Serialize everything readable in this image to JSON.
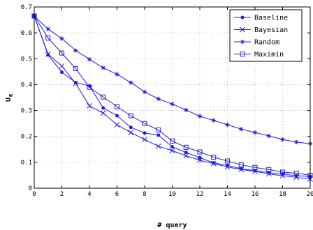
{
  "chart_data": {
    "type": "line",
    "xlabel": "# query",
    "ylabel_main": "U",
    "ylabel_sub": "R",
    "xlim": [
      0,
      20
    ],
    "ylim": [
      0,
      0.7
    ],
    "xticks": [
      "0",
      "2",
      "4",
      "6",
      "8",
      "10",
      "12",
      "14",
      "16",
      "18",
      "20"
    ],
    "yticks": [
      "0",
      "0.1",
      "0.2",
      "0.3",
      "0.4",
      "0.5",
      "0.6",
      "0.7"
    ],
    "grid": true,
    "legend_position": "top-right",
    "line_color": "#1f1fd6",
    "x": [
      0,
      1,
      2,
      3,
      4,
      5,
      6,
      7,
      8,
      9,
      10,
      11,
      12,
      13,
      14,
      15,
      16,
      17,
      18,
      19,
      20
    ],
    "series": [
      {
        "name": "Baseline",
        "marker": "dot",
        "values": [
          0.665,
          0.515,
          0.448,
          0.408,
          0.395,
          0.31,
          0.28,
          0.235,
          0.213,
          0.205,
          0.16,
          0.138,
          0.118,
          0.098,
          0.088,
          0.075,
          0.068,
          0.06,
          0.055,
          0.048,
          0.045
        ]
      },
      {
        "name": "Bayesian",
        "marker": "x",
        "values": [
          0.665,
          0.518,
          0.472,
          0.405,
          0.318,
          0.29,
          0.245,
          0.215,
          0.188,
          0.162,
          0.145,
          0.125,
          0.108,
          0.095,
          0.082,
          0.072,
          0.065,
          0.055,
          0.048,
          0.042,
          0.035
        ]
      },
      {
        "name": "Random",
        "marker": "star",
        "values": [
          0.665,
          0.615,
          0.578,
          0.532,
          0.498,
          0.465,
          0.44,
          0.408,
          0.372,
          0.345,
          0.325,
          0.302,
          0.278,
          0.262,
          0.245,
          0.228,
          0.215,
          0.202,
          0.188,
          0.178,
          0.172
        ]
      },
      {
        "name": "Maximin",
        "marker": "square",
        "values": [
          0.665,
          0.58,
          0.522,
          0.462,
          0.39,
          0.352,
          0.315,
          0.28,
          0.25,
          0.225,
          0.182,
          0.158,
          0.14,
          0.12,
          0.105,
          0.09,
          0.08,
          0.072,
          0.062,
          0.058,
          0.05
        ]
      }
    ]
  }
}
